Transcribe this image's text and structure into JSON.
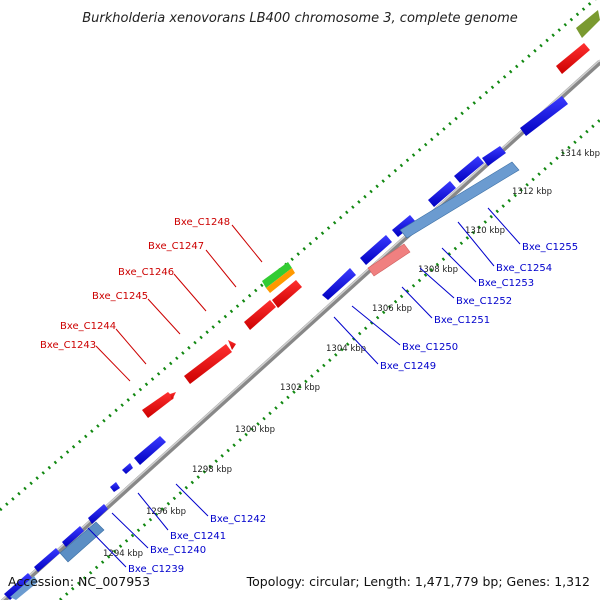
{
  "header": {
    "title": "Burkholderia xenovorans LB400 chromosome 3, complete genome"
  },
  "footer": {
    "accession": "Accession: NC_007953",
    "summary": "Topology: circular; Length: 1,471,779 bp; Genes: 1,312"
  },
  "ticks": [
    "1294 kbp",
    "1296 kbp",
    "1298 kbp",
    "1300 kbp",
    "1302 kbp",
    "1304 kbp",
    "1306 kbp",
    "1308 kbp",
    "1310 kbp",
    "1312 kbp",
    "1314 kbp"
  ],
  "genes_reverse": [
    "Bxe_C1243",
    "Bxe_C1244",
    "Bxe_C1245",
    "Bxe_C1246",
    "Bxe_C1247",
    "Bxe_C1248"
  ],
  "genes_forward": [
    "Bxe_C1239",
    "Bxe_C1240",
    "Bxe_C1241",
    "Bxe_C1242",
    "Bxe_C1249",
    "Bxe_C1250",
    "Bxe_C1251",
    "Bxe_C1252",
    "Bxe_C1253",
    "Bxe_C1254",
    "Bxe_C1255"
  ],
  "colors": {
    "forward_gene": "#0000dd",
    "reverse_gene": "#ee0000",
    "backbone": "#888888",
    "gc_dots": "#118811",
    "forward_label": "#0000cc",
    "reverse_label": "#cc0000"
  }
}
